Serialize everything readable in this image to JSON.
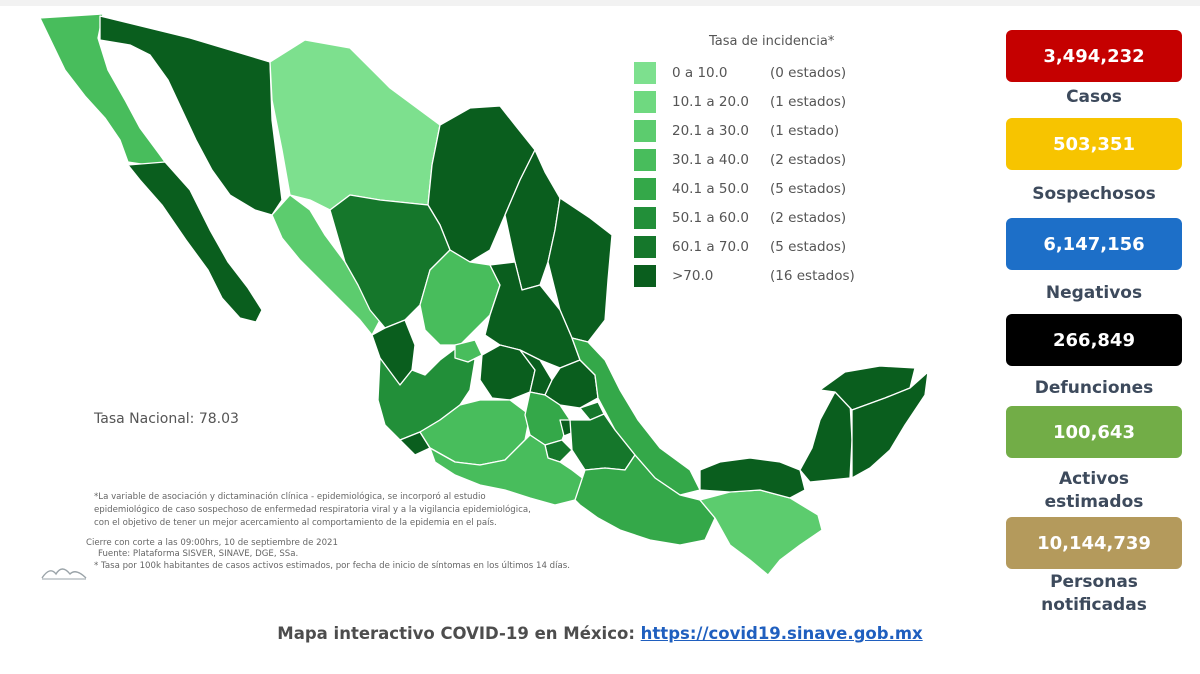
{
  "colors": {
    "c0": "#7de08e",
    "c1": "#6fd980",
    "c2": "#5ccc6e",
    "c3": "#48bd5c",
    "c4": "#34a849",
    "c5": "#228f39",
    "c6": "#15772b",
    "c7": "#0a5e1e",
    "casos": "#c50000",
    "sospechosos": "#f7c400",
    "negativos": "#1d6fc8",
    "defunciones": "#000000",
    "activos": "#72ad47",
    "notificados": "#b49a5c"
  },
  "legend": {
    "title": "Tasa de incidencia*",
    "rows": [
      {
        "range": "0   a  10.0",
        "count": "(0 estados)",
        "color": "#7de08e"
      },
      {
        "range": "10.1 a 20.0",
        "count": "(1 estados)",
        "color": "#6fd980"
      },
      {
        "range": "20.1 a 30.0",
        "count": "(1 estado)",
        "color": "#5ccc6e"
      },
      {
        "range": "30.1 a 40.0",
        "count": "(2 estados)",
        "color": "#48bd5c"
      },
      {
        "range": "40.1 a 50.0",
        "count": "(5 estados)",
        "color": "#34a849"
      },
      {
        "range": "50.1 a 60.0",
        "count": "(2 estados)",
        "color": "#228f39"
      },
      {
        "range": "60.1 a 70.0",
        "count": "(5 estados)",
        "color": "#15772b"
      },
      {
        "range": ">70.0",
        "count": "(16 estados)",
        "color": "#0a5e1e"
      }
    ]
  },
  "national_rate": "Tasa Nacional: 78.03",
  "footnotes": [
    "*La variable de asociación y dictaminación clínica - epidemiológica, se incorporó al estudio",
    "epidemiológico de caso sospechoso de enfermedad respiratoria viral y a la vigilancia epidemiológica,",
    "con el objetivo de tener un mejor acercamiento al comportamiento de la epidemia en el país.",
    "Cierre con corte a las 09:00hrs, 10 de septiembre de 2021",
    "Fuente: Plataforma SISVER, SINAVE, DGE, SSa.",
    "* Tasa por 100k habitantes de casos activos estimados, por fecha de inicio de síntomas en los últimos 14 días."
  ],
  "stats": [
    {
      "value": "3,494,232",
      "label": "Casos",
      "color": "#c50000"
    },
    {
      "value": "503,351",
      "label": "Sospechosos",
      "color": "#f7c400"
    },
    {
      "value": "6,147,156",
      "label": "Negativos",
      "color": "#1d6fc8"
    },
    {
      "value": "266,849",
      "label": "Defunciones",
      "color": "#000000"
    },
    {
      "value": "100,643",
      "label": "Activos\nestimados",
      "color": "#72ad47"
    },
    {
      "value": "10,144,739",
      "label": "Personas\nnotificadas",
      "color": "#b49a5c"
    }
  ],
  "bottom": {
    "text": "Mapa interactivo COVID-19 en México: ",
    "link": "https://covid19.sinave.gob.mx"
  }
}
